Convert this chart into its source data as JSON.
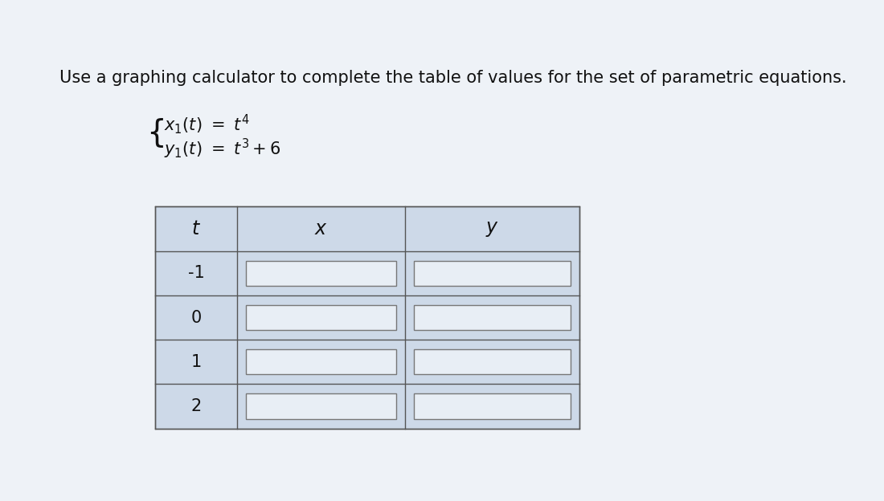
{
  "title": "Use a graphing calculator to complete the table of values for the set of parametric equations.",
  "col_headers": [
    "t",
    "x",
    "y"
  ],
  "t_values": [
    "-1",
    "0",
    "1",
    "2"
  ],
  "background_color": "#eef2f7",
  "table_bg": "#cdd9e8",
  "input_box_color": "#e8eef5",
  "border_color": "#555555",
  "title_fontsize": 15,
  "eq_fontsize": 15,
  "table_fontsize": 15,
  "fig_width": 11.0,
  "fig_height": 6.24
}
